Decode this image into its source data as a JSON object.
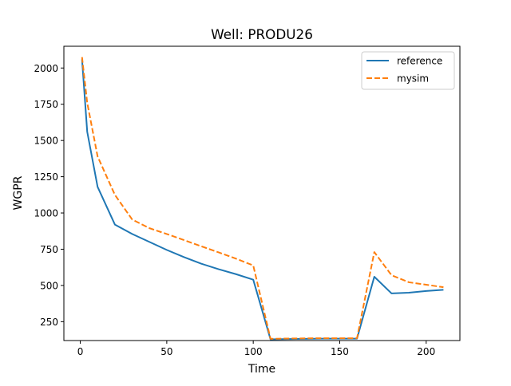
{
  "chart_data": {
    "type": "line",
    "title": "Well: PRODU26",
    "xlabel": "Time",
    "ylabel": "WGPR",
    "xlim": [
      -9.5,
      219.5
    ],
    "ylim": [
      120,
      2150
    ],
    "xticks": [
      0,
      50,
      100,
      150,
      200
    ],
    "yticks": [
      250,
      500,
      750,
      1000,
      1250,
      1500,
      1750,
      2000
    ],
    "grid": false,
    "legend_position": "top-right",
    "series": [
      {
        "name": "reference",
        "color": "#1f77b4",
        "style": "solid",
        "x": [
          1,
          4,
          10,
          20,
          30,
          40,
          50,
          60,
          70,
          80,
          90,
          100,
          110,
          120,
          130,
          140,
          150,
          160,
          170,
          180,
          190,
          200,
          210
        ],
        "y": [
          2060,
          1560,
          1180,
          920,
          855,
          800,
          745,
          695,
          650,
          612,
          578,
          540,
          128,
          130,
          132,
          133,
          133,
          133,
          560,
          445,
          450,
          462,
          470
        ]
      },
      {
        "name": "mysim",
        "color": "#ff7f0e",
        "style": "dashed",
        "x": [
          1,
          4,
          10,
          20,
          30,
          40,
          50,
          60,
          70,
          80,
          90,
          100,
          110,
          120,
          130,
          140,
          150,
          160,
          170,
          180,
          190,
          200,
          210
        ],
        "y": [
          2075,
          1760,
          1390,
          1125,
          955,
          895,
          855,
          813,
          770,
          728,
          685,
          638,
          132,
          134,
          135,
          136,
          136,
          136,
          730,
          570,
          522,
          505,
          488
        ]
      }
    ]
  }
}
